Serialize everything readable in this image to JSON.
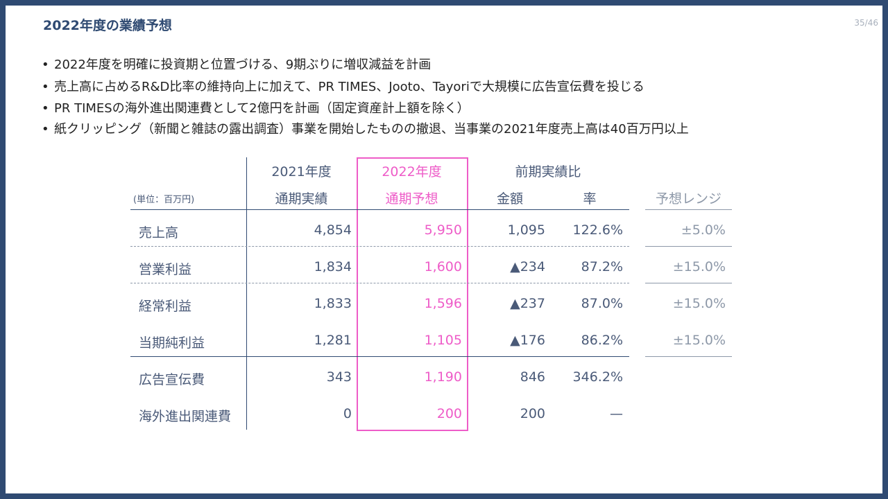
{
  "title": "2022年度の業績予想",
  "page_number": "35/46",
  "bullets": [
    "2022年度を明確に投資期と位置づける、9期ぶりに増収減益を計画",
    "売上高に占めるR&D比率の維持向上に加えて、PR TIMES、Jooto、Tayoriで大規模に広告宣伝費を投じる",
    "PR TIMESの海外進出関連費として2億円を計画（固定資産計上額を除く）",
    "紙クリッピング（新聞と雑誌の露出調査）事業を開始したものの撤退、当事業の2021年度売上高は40百万円以上"
  ],
  "table": {
    "unit": "(単位：百万円)",
    "headers": {
      "fy2021_year": "2021年度",
      "fy2021_sub": "通期実績",
      "fy2022_year": "2022年度",
      "fy2022_sub": "通期予想",
      "yoy": "前期実績比",
      "amount": "金額",
      "rate": "率",
      "range": "予想レンジ"
    },
    "rows": [
      {
        "label": "売上高",
        "fy2021": "4,854",
        "fy2022": "5,950",
        "amount": "1,095",
        "rate": "122.6%",
        "range": "±5.0%"
      },
      {
        "label": "営業利益",
        "fy2021": "1,834",
        "fy2022": "1,600",
        "amount": "▲234",
        "rate": "87.2%",
        "range": "±15.0%"
      },
      {
        "label": "経常利益",
        "fy2021": "1,833",
        "fy2022": "1,596",
        "amount": "▲237",
        "rate": "87.0%",
        "range": "±15.0%"
      },
      {
        "label": "当期純利益",
        "fy2021": "1,281",
        "fy2022": "1,105",
        "amount": "▲176",
        "rate": "86.2%",
        "range": "±15.0%"
      },
      {
        "label": "広告宣伝費",
        "fy2021": "343",
        "fy2022": "1,190",
        "amount": "846",
        "rate": "346.2%",
        "range": ""
      },
      {
        "label": "海外進出関連費",
        "fy2021": "0",
        "fy2022": "200",
        "amount": "200",
        "rate": "—",
        "range": ""
      }
    ]
  },
  "colors": {
    "frame": "#2f4a72",
    "highlight": "#ee5cc8",
    "text": "#4a5a78"
  }
}
